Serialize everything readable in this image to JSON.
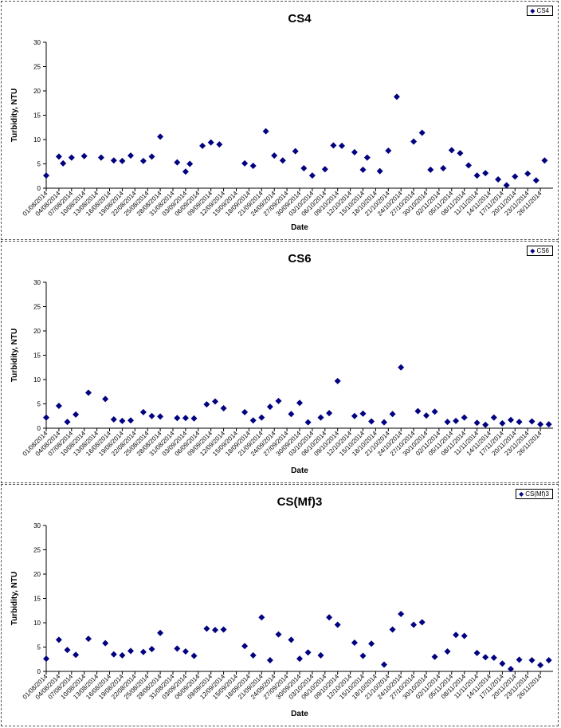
{
  "chart_data": [
    {
      "type": "scatter",
      "title": "CS4",
      "xlabel": "Date",
      "ylabel": "Turbidity, NTU",
      "ylim": [
        0,
        30
      ],
      "yticks": [
        "0",
        "5",
        "10",
        "15",
        "20",
        "25",
        "30"
      ],
      "xlim": [
        "01/08/2014",
        "29/11/2014"
      ],
      "xticks": [
        "01/08/2014",
        "04/08/2014",
        "07/08/2014",
        "10/08/2014",
        "13/08/2014",
        "16/08/2014",
        "19/08/2014",
        "22/08/2014",
        "25/08/2014",
        "28/08/2014",
        "31/08/2014",
        "03/09/2014",
        "06/09/2014",
        "09/09/2014",
        "12/09/2014",
        "15/09/2014",
        "18/09/2014",
        "21/09/2014",
        "24/09/2014",
        "27/09/2014",
        "30/09/2014",
        "03/10/2014",
        "06/10/2014",
        "09/10/2014",
        "12/10/2014",
        "15/10/2014",
        "18/10/2014",
        "21/10/2014",
        "24/10/2014",
        "27/10/2014",
        "30/10/2014",
        "02/11/2014",
        "05/11/2014",
        "08/11/2014",
        "11/11/2014",
        "14/11/2014",
        "17/11/2014",
        "20/11/2014",
        "23/11/2014",
        "26/11/2014"
      ],
      "legend": "top-right",
      "marker_color": "#000080",
      "series": [
        {
          "name": "CS4",
          "points": [
            [
              "01/08/2014",
              2.6
            ],
            [
              "04/08/2014",
              6.5
            ],
            [
              "05/08/2014",
              5.1
            ],
            [
              "07/08/2014",
              6.3
            ],
            [
              "10/08/2014",
              6.6
            ],
            [
              "14/08/2014",
              6.3
            ],
            [
              "17/08/2014",
              5.7
            ],
            [
              "19/08/2014",
              5.6
            ],
            [
              "21/08/2014",
              6.7
            ],
            [
              "24/08/2014",
              5.6
            ],
            [
              "26/08/2014",
              6.5
            ],
            [
              "28/08/2014",
              10.6
            ],
            [
              "01/09/2014",
              5.3
            ],
            [
              "03/09/2014",
              3.4
            ],
            [
              "04/09/2014",
              5.0
            ],
            [
              "07/09/2014",
              8.7
            ],
            [
              "09/09/2014",
              9.4
            ],
            [
              "11/09/2014",
              9.0
            ],
            [
              "17/09/2014",
              5.1
            ],
            [
              "19/09/2014",
              4.6
            ],
            [
              "22/09/2014",
              11.7
            ],
            [
              "24/09/2014",
              6.7
            ],
            [
              "26/09/2014",
              5.7
            ],
            [
              "29/09/2014",
              7.6
            ],
            [
              "01/10/2014",
              4.1
            ],
            [
              "03/10/2014",
              2.6
            ],
            [
              "06/10/2014",
              3.9
            ],
            [
              "08/10/2014",
              8.8
            ],
            [
              "10/10/2014",
              8.7
            ],
            [
              "13/10/2014",
              7.4
            ],
            [
              "15/10/2014",
              3.8
            ],
            [
              "16/10/2014",
              6.3
            ],
            [
              "19/10/2014",
              3.5
            ],
            [
              "21/10/2014",
              7.7
            ],
            [
              "23/10/2014",
              18.8
            ],
            [
              "27/10/2014",
              9.6
            ],
            [
              "29/10/2014",
              11.4
            ],
            [
              "31/10/2014",
              3.8
            ],
            [
              "03/11/2014",
              4.1
            ],
            [
              "05/11/2014",
              7.8
            ],
            [
              "07/11/2014",
              7.2
            ],
            [
              "09/11/2014",
              4.7
            ],
            [
              "11/11/2014",
              2.6
            ],
            [
              "13/11/2014",
              3.1
            ],
            [
              "16/11/2014",
              1.8
            ],
            [
              "18/11/2014",
              0.6
            ],
            [
              "20/11/2014",
              2.4
            ],
            [
              "23/11/2014",
              3.0
            ],
            [
              "25/11/2014",
              1.6
            ],
            [
              "27/11/2014",
              5.7
            ]
          ]
        }
      ]
    },
    {
      "type": "scatter",
      "title": "CS6",
      "xlabel": "Date",
      "ylabel": "Turbidity, NTU",
      "ylim": [
        0,
        30
      ],
      "yticks": [
        "0",
        "5",
        "10",
        "15",
        "20",
        "25",
        "30"
      ],
      "xlim": [
        "01/08/2014",
        "29/11/2014"
      ],
      "xticks": [
        "01/08/2014",
        "04/08/2014",
        "07/08/2014",
        "10/08/2014",
        "13/08/2014",
        "16/08/2014",
        "19/08/2014",
        "22/08/2014",
        "25/08/2014",
        "28/08/2014",
        "31/08/2014",
        "03/09/2014",
        "06/09/2014",
        "09/09/2014",
        "12/09/2014",
        "15/09/2014",
        "18/09/2014",
        "21/09/2014",
        "24/09/2014",
        "27/09/2014",
        "30/09/2014",
        "03/10/2014",
        "06/10/2014",
        "09/10/2014",
        "12/10/2014",
        "15/10/2014",
        "18/10/2014",
        "21/10/2014",
        "24/10/2014",
        "27/10/2014",
        "30/10/2014",
        "02/11/2014",
        "05/11/2014",
        "08/11/2014",
        "11/11/2014",
        "14/11/2014",
        "17/11/2014",
        "20/11/2014",
        "23/11/2014",
        "26/11/2014"
      ],
      "legend": "top-right",
      "marker_color": "#000080",
      "series": [
        {
          "name": "CS6",
          "points": [
            [
              "01/08/2014",
              2.2
            ],
            [
              "04/08/2014",
              4.6
            ],
            [
              "06/08/2014",
              1.3
            ],
            [
              "08/08/2014",
              2.8
            ],
            [
              "11/08/2014",
              7.3
            ],
            [
              "15/08/2014",
              6.0
            ],
            [
              "17/08/2014",
              1.8
            ],
            [
              "19/08/2014",
              1.5
            ],
            [
              "21/08/2014",
              1.6
            ],
            [
              "24/08/2014",
              3.3
            ],
            [
              "26/08/2014",
              2.5
            ],
            [
              "28/08/2014",
              2.4
            ],
            [
              "01/09/2014",
              2.1
            ],
            [
              "03/09/2014",
              2.1
            ],
            [
              "05/09/2014",
              2.0
            ],
            [
              "08/09/2014",
              4.9
            ],
            [
              "10/09/2014",
              5.5
            ],
            [
              "12/09/2014",
              4.1
            ],
            [
              "17/09/2014",
              3.3
            ],
            [
              "19/09/2014",
              1.6
            ],
            [
              "21/09/2014",
              2.2
            ],
            [
              "23/09/2014",
              4.4
            ],
            [
              "25/09/2014",
              5.6
            ],
            [
              "28/09/2014",
              2.9
            ],
            [
              "30/09/2014",
              5.2
            ],
            [
              "02/10/2014",
              1.2
            ],
            [
              "05/10/2014",
              2.2
            ],
            [
              "07/10/2014",
              3.1
            ],
            [
              "09/10/2014",
              9.7
            ],
            [
              "13/10/2014",
              2.5
            ],
            [
              "15/10/2014",
              3.0
            ],
            [
              "17/10/2014",
              1.4
            ],
            [
              "20/10/2014",
              1.2
            ],
            [
              "22/10/2014",
              2.9
            ],
            [
              "24/10/2014",
              12.5
            ],
            [
              "28/10/2014",
              3.5
            ],
            [
              "30/10/2014",
              2.6
            ],
            [
              "01/11/2014",
              3.4
            ],
            [
              "04/11/2014",
              1.3
            ],
            [
              "06/11/2014",
              1.5
            ],
            [
              "08/11/2014",
              2.2
            ],
            [
              "11/11/2014",
              1.1
            ],
            [
              "13/11/2014",
              0.7
            ],
            [
              "15/11/2014",
              2.2
            ],
            [
              "17/11/2014",
              1.0
            ],
            [
              "19/11/2014",
              1.7
            ],
            [
              "21/11/2014",
              1.3
            ],
            [
              "24/11/2014",
              1.4
            ],
            [
              "26/11/2014",
              0.8
            ],
            [
              "28/11/2014",
              0.8
            ]
          ]
        }
      ]
    },
    {
      "type": "scatter",
      "title": "CS(Mf)3",
      "xlabel": "Date",
      "ylabel": "Turbidity, NTU",
      "ylim": [
        0,
        30
      ],
      "yticks": [
        "0",
        "5",
        "10",
        "15",
        "20",
        "25",
        "30"
      ],
      "xlim": [
        "01/08/2014",
        "29/11/2014"
      ],
      "xticks": [
        "01/08/2014",
        "04/08/2014",
        "07/08/2014",
        "10/08/2014",
        "13/08/2014",
        "16/08/2014",
        "19/08/2014",
        "22/08/2014",
        "25/08/2014",
        "28/08/2014",
        "31/08/2014",
        "03/09/2014",
        "06/09/2014",
        "09/09/2014",
        "12/09/2014",
        "15/09/2014",
        "18/09/2014",
        "21/09/2014",
        "24/09/2014",
        "27/09/2014",
        "30/09/2014",
        "03/10/2014",
        "06/10/2014",
        "09/10/2014",
        "12/10/2014",
        "15/10/2014",
        "18/10/2014",
        "21/10/2014",
        "24/10/2014",
        "27/10/2014",
        "30/10/2014",
        "02/11/2014",
        "05/11/2014",
        "08/11/2014",
        "11/11/2014",
        "14/11/2014",
        "17/11/2014",
        "20/11/2014",
        "23/11/2014",
        "26/11/2014"
      ],
      "legend": "top-right",
      "marker_color": "#000080",
      "series": [
        {
          "name": "CS(Mf)3",
          "points": [
            [
              "01/08/2014",
              2.6
            ],
            [
              "04/08/2014",
              6.5
            ],
            [
              "06/08/2014",
              4.4
            ],
            [
              "08/08/2014",
              3.4
            ],
            [
              "11/08/2014",
              6.7
            ],
            [
              "15/08/2014",
              5.8
            ],
            [
              "17/08/2014",
              3.5
            ],
            [
              "19/08/2014",
              3.3
            ],
            [
              "21/08/2014",
              4.2
            ],
            [
              "24/08/2014",
              4.0
            ],
            [
              "26/08/2014",
              4.6
            ],
            [
              "28/08/2014",
              7.9
            ],
            [
              "01/09/2014",
              4.7
            ],
            [
              "03/09/2014",
              4.1
            ],
            [
              "05/09/2014",
              3.2
            ],
            [
              "08/09/2014",
              8.8
            ],
            [
              "10/09/2014",
              8.5
            ],
            [
              "12/09/2014",
              8.6
            ],
            [
              "17/09/2014",
              5.2
            ],
            [
              "19/09/2014",
              3.3
            ],
            [
              "21/09/2014",
              11.1
            ],
            [
              "23/09/2014",
              2.3
            ],
            [
              "25/09/2014",
              7.6
            ],
            [
              "28/09/2014",
              6.5
            ],
            [
              "30/09/2014",
              2.6
            ],
            [
              "02/10/2014",
              3.9
            ],
            [
              "05/10/2014",
              3.3
            ],
            [
              "07/10/2014",
              11.1
            ],
            [
              "09/10/2014",
              9.6
            ],
            [
              "13/10/2014",
              5.9
            ],
            [
              "15/10/2014",
              3.2
            ],
            [
              "17/10/2014",
              5.7
            ],
            [
              "20/10/2014",
              1.4
            ],
            [
              "22/10/2014",
              8.6
            ],
            [
              "24/10/2014",
              11.8
            ],
            [
              "27/10/2014",
              9.6
            ],
            [
              "29/10/2014",
              10.1
            ],
            [
              "01/11/2014",
              3.0
            ],
            [
              "04/11/2014",
              4.1
            ],
            [
              "06/11/2014",
              7.5
            ],
            [
              "08/11/2014",
              7.3
            ],
            [
              "11/11/2014",
              3.8
            ],
            [
              "13/11/2014",
              2.9
            ],
            [
              "15/11/2014",
              2.8
            ],
            [
              "17/11/2014",
              1.6
            ],
            [
              "19/11/2014",
              0.5
            ],
            [
              "21/11/2014",
              2.4
            ],
            [
              "24/11/2014",
              2.3
            ],
            [
              "26/11/2014",
              1.3
            ],
            [
              "28/11/2014",
              2.3
            ]
          ]
        }
      ]
    }
  ]
}
